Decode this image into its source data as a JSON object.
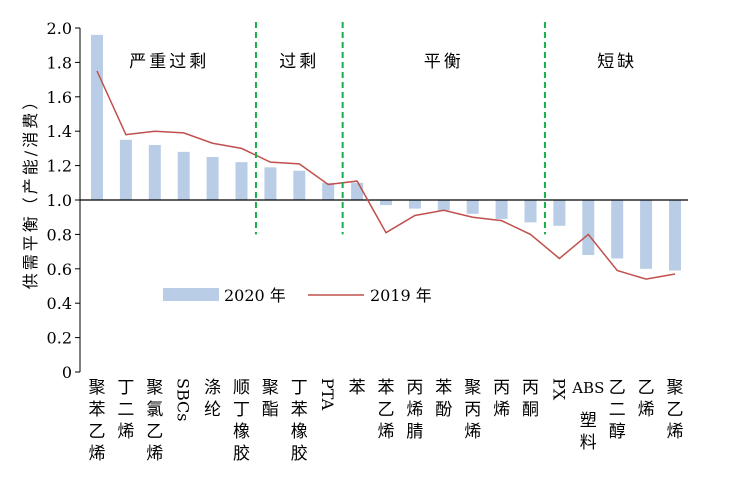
{
  "chart_data": {
    "type": "bar",
    "title": "",
    "ylabel": "供需平衡（产能/消费）",
    "xlabel": "",
    "ylim": [
      0,
      2.0
    ],
    "yticks": [
      "0",
      "0.2",
      "0.4",
      "0.6",
      "0.8",
      "1.0",
      "1.2",
      "1.4",
      "1.6",
      "1.8",
      "2.0"
    ],
    "bar_baseline": 1.0,
    "grid": false,
    "legend_placement": "center-left",
    "categories": [
      "聚苯乙烯",
      "丁二烯",
      "聚氯乙烯",
      "SBCs",
      "涤纶",
      "顺丁橡胶",
      "聚酯",
      "丁苯橡胶",
      "PTA",
      "苯",
      "苯乙烯",
      "丙烯腈",
      "苯酚",
      "聚丙烯",
      "丙烯",
      "丙酮",
      "PX",
      "ABS塑料",
      "乙二醇",
      "乙烯",
      "聚乙烯"
    ],
    "series": [
      {
        "name": "2020 年",
        "type": "bar",
        "color": "#b9cde6",
        "values": [
          1.96,
          1.35,
          1.32,
          1.28,
          1.25,
          1.22,
          1.19,
          1.17,
          1.1,
          1.1,
          0.97,
          0.95,
          0.94,
          0.92,
          0.89,
          0.87,
          0.85,
          0.68,
          0.66,
          0.6,
          0.59
        ]
      },
      {
        "name": "2019 年",
        "type": "line",
        "color": "#c0504d",
        "values": [
          1.75,
          1.38,
          1.4,
          1.39,
          1.33,
          1.3,
          1.22,
          1.21,
          1.09,
          1.11,
          0.81,
          0.91,
          0.94,
          0.9,
          0.88,
          0.8,
          0.66,
          0.8,
          0.59,
          0.54,
          0.57
        ]
      }
    ],
    "sections": [
      {
        "label": "严重过剩",
        "from": 0,
        "to": 5
      },
      {
        "label": "过剩",
        "from": 6,
        "to": 8
      },
      {
        "label": "平衡",
        "from": 9,
        "to": 15
      },
      {
        "label": "短缺",
        "from": 16,
        "to": 20
      }
    ],
    "divider_color": "#1aae4a"
  }
}
